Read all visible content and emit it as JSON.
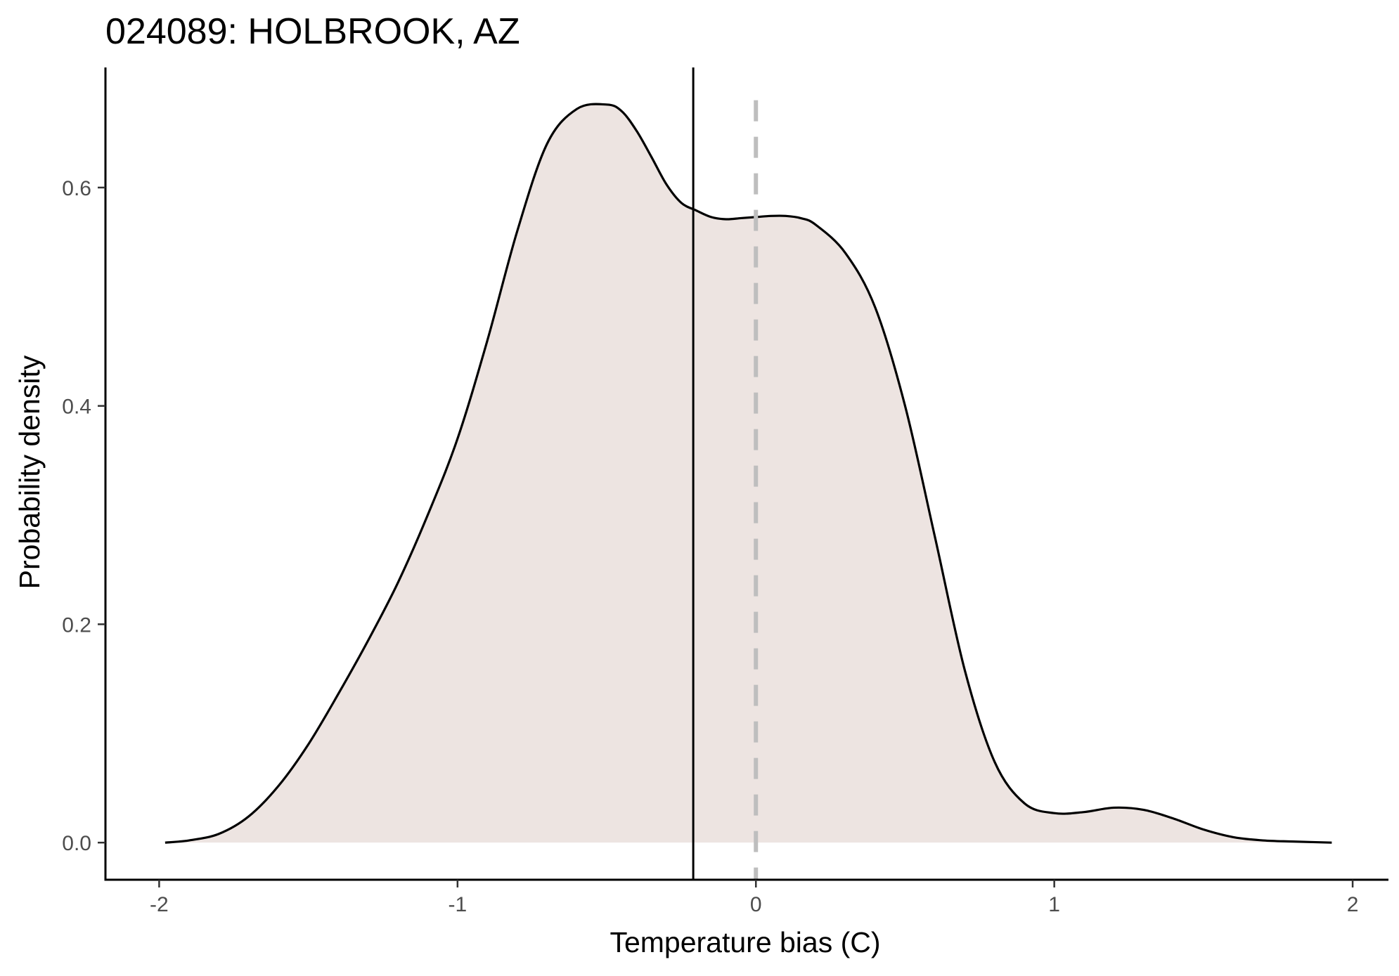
{
  "chart_data": {
    "type": "area",
    "title": "024089: HOLBROOK, AZ",
    "xlabel": "Temperature bias (C)",
    "ylabel": "Probability density",
    "xlim": [
      -2.18,
      2.12
    ],
    "ylim": [
      -0.034,
      0.71
    ],
    "x_ticks": [
      -2,
      -1,
      0,
      1,
      2
    ],
    "x_tick_labels": [
      "-2",
      "-1",
      "0",
      "1",
      "2"
    ],
    "y_ticks": [
      0.0,
      0.2,
      0.4,
      0.6
    ],
    "y_tick_labels": [
      "0.0",
      "0.2",
      "0.4",
      "0.6"
    ],
    "grid": false,
    "legend": "none",
    "series": [
      {
        "x": [
          -1.98,
          -1.9,
          -1.8,
          -1.7,
          -1.6,
          -1.5,
          -1.4,
          -1.3,
          -1.2,
          -1.1,
          -1.0,
          -0.9,
          -0.8,
          -0.7,
          -0.6,
          -0.5,
          -0.45,
          -0.4,
          -0.35,
          -0.3,
          -0.25,
          -0.2,
          -0.15,
          -0.1,
          -0.05,
          0.0,
          0.05,
          0.1,
          0.15,
          0.2,
          0.3,
          0.4,
          0.5,
          0.6,
          0.7,
          0.8,
          0.9,
          1.0,
          1.1,
          1.2,
          1.3,
          1.4,
          1.5,
          1.6,
          1.7,
          1.8,
          1.93
        ],
        "y": [
          0.0,
          0.002,
          0.008,
          0.024,
          0.052,
          0.09,
          0.136,
          0.185,
          0.238,
          0.3,
          0.37,
          0.46,
          0.56,
          0.64,
          0.672,
          0.676,
          0.67,
          0.652,
          0.628,
          0.603,
          0.586,
          0.579,
          0.573,
          0.571,
          0.572,
          0.573,
          0.574,
          0.574,
          0.572,
          0.566,
          0.54,
          0.49,
          0.4,
          0.28,
          0.158,
          0.074,
          0.036,
          0.027,
          0.028,
          0.032,
          0.03,
          0.022,
          0.012,
          0.005,
          0.002,
          0.001,
          0.0
        ]
      }
    ],
    "fill_color": "#ede4e1",
    "line_color": "#000000",
    "reference_lines": [
      {
        "x": -0.21,
        "style": "solid",
        "color": "#000000"
      },
      {
        "x": 0.0,
        "style": "dashed",
        "color": "#bebebe"
      }
    ]
  }
}
